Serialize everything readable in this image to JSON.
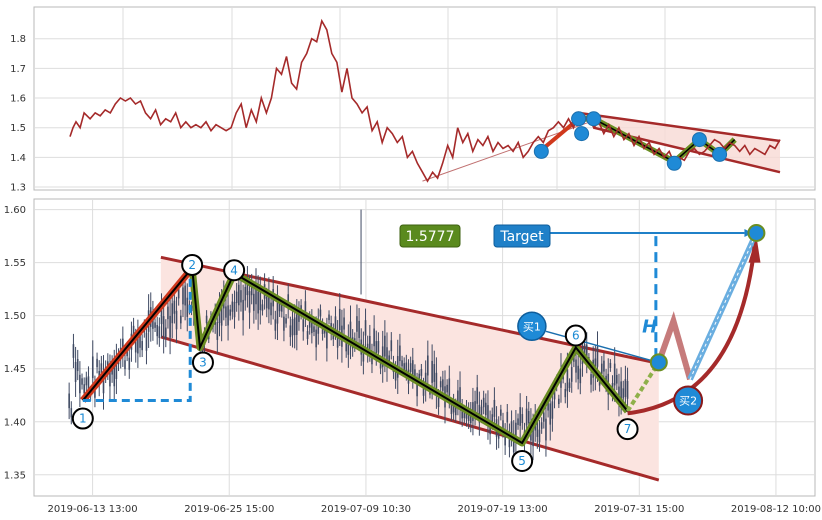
{
  "chart_data": [
    {
      "type": "line",
      "panel": "overview",
      "ylim": [
        1.29,
        1.89
      ],
      "yticks": [
        1.3,
        1.4,
        1.5,
        1.6,
        1.7,
        1.8
      ],
      "ytick_labels": [
        "1.3",
        "1.4",
        "1.5",
        "1.6",
        "1.7",
        "1.8"
      ],
      "grid": true,
      "series": [
        {
          "color": "#a52a2a",
          "t": [
            0,
            3,
            6,
            10,
            14,
            20,
            25,
            30,
            35,
            40,
            45,
            50,
            55,
            60,
            65,
            70,
            75,
            80,
            85,
            90,
            95,
            100,
            105,
            110,
            115,
            120,
            125,
            130,
            135,
            140,
            145,
            150,
            155,
            160,
            165,
            170,
            175,
            180,
            185,
            190,
            195,
            200,
            205,
            210,
            215,
            220,
            225,
            230,
            235,
            240,
            245,
            250,
            255,
            260,
            265,
            270,
            275,
            280,
            285,
            290,
            295,
            300,
            305,
            310,
            315,
            320,
            325,
            330,
            335,
            340,
            345,
            350,
            355,
            360,
            365,
            370,
            375,
            380,
            385,
            390,
            395,
            400,
            405,
            410,
            415,
            420,
            425,
            430,
            435,
            440,
            445,
            450,
            455,
            460,
            465,
            470,
            475,
            480,
            485,
            490,
            495,
            500,
            505,
            510,
            515,
            520,
            525,
            530,
            535,
            540,
            545,
            550,
            555,
            560,
            565,
            570,
            575,
            580,
            585,
            590,
            595,
            600,
            605,
            610,
            615,
            620,
            625,
            630,
            635,
            640,
            645,
            650,
            655,
            660,
            665,
            670,
            675,
            680,
            685,
            690,
            695,
            700,
            705
          ],
          "values": [
            1.47,
            1.5,
            1.52,
            1.5,
            1.55,
            1.53,
            1.55,
            1.54,
            1.56,
            1.55,
            1.58,
            1.6,
            1.59,
            1.6,
            1.58,
            1.59,
            1.55,
            1.53,
            1.56,
            1.51,
            1.53,
            1.52,
            1.55,
            1.5,
            1.52,
            1.5,
            1.51,
            1.5,
            1.52,
            1.49,
            1.51,
            1.5,
            1.49,
            1.5,
            1.55,
            1.58,
            1.5,
            1.56,
            1.52,
            1.6,
            1.55,
            1.6,
            1.7,
            1.68,
            1.74,
            1.65,
            1.63,
            1.72,
            1.75,
            1.8,
            1.79,
            1.86,
            1.83,
            1.75,
            1.72,
            1.62,
            1.7,
            1.6,
            1.58,
            1.55,
            1.57,
            1.49,
            1.52,
            1.45,
            1.5,
            1.48,
            1.45,
            1.47,
            1.4,
            1.42,
            1.38,
            1.35,
            1.32,
            1.35,
            1.33,
            1.38,
            1.44,
            1.4,
            1.5,
            1.45,
            1.48,
            1.42,
            1.46,
            1.44,
            1.47,
            1.42,
            1.45,
            1.43,
            1.44,
            1.42,
            1.45,
            1.4,
            1.42,
            1.45,
            1.47,
            1.45,
            1.49,
            1.5,
            1.52,
            1.5,
            1.53,
            1.5,
            1.55,
            1.52,
            1.54,
            1.5,
            1.52,
            1.48,
            1.51,
            1.47,
            1.5,
            1.46,
            1.48,
            1.44,
            1.47,
            1.43,
            1.45,
            1.41,
            1.43,
            1.4,
            1.42,
            1.38,
            1.4,
            1.39,
            1.42,
            1.43,
            1.41,
            1.42,
            1.44,
            1.46,
            1.45,
            1.43,
            1.45,
            1.44,
            1.42,
            1.44,
            1.41,
            1.43,
            1.42,
            1.41,
            1.44,
            1.43,
            1.46
          ]
        }
      ],
      "channel_color": "#f7d9d4",
      "markers": [
        {
          "t": 468,
          "v": 1.42
        },
        {
          "t": 505,
          "v": 1.53
        },
        {
          "t": 508,
          "v": 1.48
        },
        {
          "t": 520,
          "v": 1.53
        },
        {
          "t": 600,
          "v": 1.38
        },
        {
          "t": 625,
          "v": 1.46
        },
        {
          "t": 645,
          "v": 1.41
        }
      ]
    },
    {
      "type": "candlestick",
      "panel": "detail",
      "xlim": [
        0,
        800
      ],
      "ylim": [
        1.33,
        1.61
      ],
      "yticks": [
        1.35,
        1.4,
        1.45,
        1.5,
        1.55,
        1.6
      ],
      "ytick_labels": [
        "1.35",
        "1.40",
        "1.45",
        "1.50",
        "1.55",
        "1.60"
      ],
      "xticks": [
        60,
        200,
        340,
        480,
        620,
        760
      ],
      "xtick_labels": [
        "2019-06-13 13:00",
        "2019-06-25 15:00",
        "2019-07-09 10:30",
        "2019-07-19 13:00",
        "2019-07-31 15:00",
        "2019-08-12 10:00"
      ],
      "grid": true,
      "price_label": "1.5777",
      "target_label": "Target",
      "target_value": 1.578,
      "h_label": "H",
      "buy1_label": "买1",
      "buy2_label": "买2",
      "candle_color": "#3f4a63",
      "waves": [
        {
          "label": "1",
          "t": 50,
          "v": 1.42
        },
        {
          "label": "2",
          "t": 162,
          "v": 1.545
        },
        {
          "label": "3",
          "t": 170,
          "v": 1.47
        },
        {
          "label": "4",
          "t": 205,
          "v": 1.54
        },
        {
          "label": "5",
          "t": 500,
          "v": 1.38
        },
        {
          "label": "6",
          "t": 555,
          "v": 1.47
        },
        {
          "label": "7",
          "t": 608,
          "v": 1.41
        }
      ],
      "channel": {
        "upper": [
          [
            130,
            1.555
          ],
          [
            640,
            1.455
          ]
        ],
        "lower": [
          [
            130,
            1.48
          ],
          [
            640,
            1.345
          ]
        ]
      },
      "forecast": [
        [
          608,
          1.41
        ],
        [
          640,
          1.456
        ],
        [
          655,
          1.495
        ],
        [
          672,
          1.44
        ],
        [
          740,
          1.578
        ]
      ],
      "target_from_t": 520,
      "h_line": {
        "t": 637,
        "v0": 1.456,
        "v1": 1.575
      },
      "h_left": {
        "t0": 50,
        "t1": 160,
        "v0": 1.42,
        "v1": 1.545
      },
      "buy1": {
        "t": 510,
        "v": 1.49
      },
      "buy2": {
        "t": 670,
        "v": 1.42
      },
      "colors": {
        "wave_fill": "#6b8e23",
        "channel_line": "#a52a2a",
        "channel_fill": "#fbe4e0",
        "first_leg": "#d0381c",
        "target_badge": "#1f80c8",
        "price_badge": "#5a8a1e",
        "blue_dash": "#1f8ad6",
        "forecast_blue": "#6aaee0",
        "forecast_red": "#b85a5a"
      }
    }
  ]
}
